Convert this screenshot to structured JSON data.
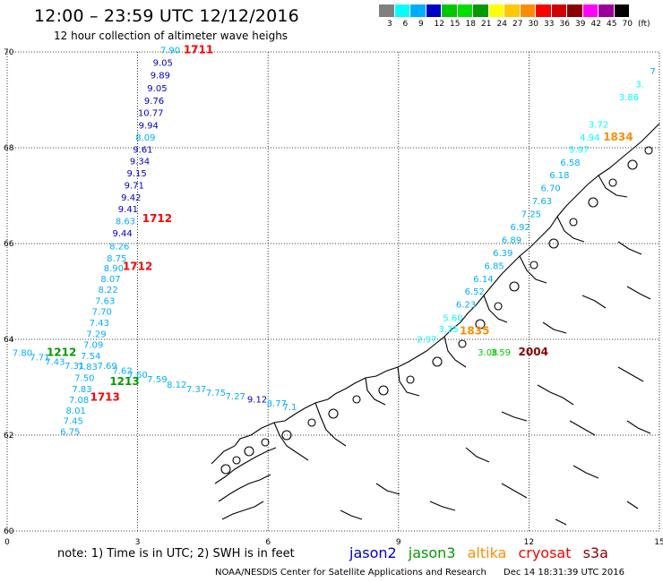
{
  "header": {
    "title": "12:00 – 23:59 UTC 12/12/2016",
    "subtitle": "12 hour collection of altimeter wave heighs"
  },
  "scale": {
    "colors": [
      "#808080",
      "#00ffff",
      "#00aeff",
      "#0000c8",
      "#00c800",
      "#00e000",
      "#009b00",
      "#ffff00",
      "#ffc800",
      "#ff8c00",
      "#ff0000",
      "#d20000",
      "#8c0000",
      "#ff00ff",
      "#9b009b",
      "#000000",
      "#000000"
    ],
    "labels": [
      "3",
      "6",
      "9",
      "12",
      "15",
      "18",
      "21",
      "24",
      "27",
      "30",
      "33",
      "36",
      "39",
      "42",
      "45",
      "70",
      "(ft)"
    ]
  },
  "axes": {
    "lon_ticks": [
      "0",
      "3",
      "6",
      "9",
      "12",
      "15"
    ],
    "lat_ticks": [
      "70",
      "68",
      "66",
      "64",
      "62",
      "60"
    ],
    "lon_values": [
      0,
      3,
      6,
      9,
      12,
      15
    ],
    "lat_values": [
      70,
      68,
      66,
      64,
      62,
      60
    ]
  },
  "satellites": [
    {
      "name": "jason2",
      "color": "#0000c8"
    },
    {
      "name": "jason3",
      "color": "#009b00"
    },
    {
      "name": "altika",
      "color": "#ff8c00"
    },
    {
      "name": "cryosat",
      "color": "#ff0000"
    },
    {
      "name": "s3a",
      "color": "#8c0000"
    }
  ],
  "note": "note:  1) Time is in UTC;  2) SWH is in feet",
  "credit": "NOAA/NESDIS Center for Satellite Applications and Research",
  "stamp": "Dec 14  18:31:39 UTC 2016",
  "observations": [
    {
      "text": "7.90",
      "lon": 3.75,
      "lat": 69.97,
      "c": "#00aeff"
    },
    {
      "text": "9.05",
      "lon": 3.58,
      "lat": 69.71,
      "c": "#0000c8"
    },
    {
      "text": "9.89",
      "lon": 3.52,
      "lat": 69.45,
      "c": "#0000c8"
    },
    {
      "text": "9.05",
      "lon": 3.45,
      "lat": 69.18,
      "c": "#0000c8"
    },
    {
      "text": "9.76",
      "lon": 3.38,
      "lat": 68.92,
      "c": "#0000c8"
    },
    {
      "text": "10.77",
      "lon": 3.3,
      "lat": 68.66,
      "c": "#0000c8"
    },
    {
      "text": "9.94",
      "lon": 3.25,
      "lat": 68.4,
      "c": "#0000c8"
    },
    {
      "text": "8.09",
      "lon": 3.18,
      "lat": 68.15,
      "c": "#00aeff"
    },
    {
      "text": "9.61",
      "lon": 3.12,
      "lat": 67.9,
      "c": "#0000c8"
    },
    {
      "text": "9.34",
      "lon": 3.05,
      "lat": 67.65,
      "c": "#0000c8"
    },
    {
      "text": "9.15",
      "lon": 2.98,
      "lat": 67.4,
      "c": "#0000c8"
    },
    {
      "text": "9.71",
      "lon": 2.92,
      "lat": 67.15,
      "c": "#0000c8"
    },
    {
      "text": "9.42",
      "lon": 2.85,
      "lat": 66.9,
      "c": "#0000c8"
    },
    {
      "text": "9.41",
      "lon": 2.78,
      "lat": 66.65,
      "c": "#0000c8"
    },
    {
      "text": "8.63",
      "lon": 2.72,
      "lat": 66.4,
      "c": "#00aeff"
    },
    {
      "text": "9.44",
      "lon": 2.65,
      "lat": 66.15,
      "c": "#0000c8"
    },
    {
      "text": "8.26",
      "lon": 2.58,
      "lat": 65.88,
      "c": "#00aeff"
    },
    {
      "text": "8.75",
      "lon": 2.52,
      "lat": 65.63,
      "c": "#00aeff"
    },
    {
      "text": "8.90",
      "lon": 2.45,
      "lat": 65.42,
      "c": "#00aeff"
    },
    {
      "text": "8.07",
      "lon": 2.38,
      "lat": 65.2,
      "c": "#00aeff"
    },
    {
      "text": "8.22",
      "lon": 2.32,
      "lat": 64.97,
      "c": "#00aeff"
    },
    {
      "text": "7.63",
      "lon": 2.25,
      "lat": 64.74,
      "c": "#00aeff"
    },
    {
      "text": "7.70",
      "lon": 2.18,
      "lat": 64.51,
      "c": "#00aeff"
    },
    {
      "text": "7.43",
      "lon": 2.12,
      "lat": 64.28,
      "c": "#00aeff"
    },
    {
      "text": "7.29",
      "lon": 2.05,
      "lat": 64.05,
      "c": "#00aeff"
    },
    {
      "text": "7.09",
      "lon": 1.98,
      "lat": 63.82,
      "c": "#00aeff"
    },
    {
      "text": "7.54",
      "lon": 1.92,
      "lat": 63.59,
      "c": "#00aeff"
    },
    {
      "text": "7.83",
      "lon": 1.85,
      "lat": 63.36,
      "c": "#00aeff"
    },
    {
      "text": "7.50",
      "lon": 1.78,
      "lat": 63.13,
      "c": "#00aeff"
    },
    {
      "text": "7.83",
      "lon": 1.72,
      "lat": 62.9,
      "c": "#00aeff"
    },
    {
      "text": "7.08",
      "lon": 1.65,
      "lat": 62.67,
      "c": "#00aeff"
    },
    {
      "text": "8.01",
      "lon": 1.58,
      "lat": 62.45,
      "c": "#00aeff"
    },
    {
      "text": "7.45",
      "lon": 1.52,
      "lat": 62.23,
      "c": "#00aeff"
    },
    {
      "text": "6.75",
      "lon": 1.45,
      "lat": 62.01,
      "c": "#00aeff"
    },
    {
      "text": "7.80",
      "lon": 0.35,
      "lat": 63.65,
      "c": "#00aeff"
    },
    {
      "text": "7.71",
      "lon": 0.75,
      "lat": 63.56,
      "c": "#00aeff"
    },
    {
      "text": "7.43",
      "lon": 1.1,
      "lat": 63.47,
      "c": "#00aeff"
    },
    {
      "text": "7.31",
      "lon": 1.55,
      "lat": 63.38,
      "c": "#00aeff"
    },
    {
      "text": "7.69",
      "lon": 2.3,
      "lat": 63.38,
      "c": "#00aeff"
    },
    {
      "text": "7.62",
      "lon": 2.65,
      "lat": 63.28,
      "c": "#00aeff"
    },
    {
      "text": "7.60",
      "lon": 3.0,
      "lat": 63.2,
      "c": "#00aeff"
    },
    {
      "text": "7.59",
      "lon": 3.45,
      "lat": 63.1,
      "c": "#00aeff"
    },
    {
      "text": "8.12",
      "lon": 3.9,
      "lat": 62.99,
      "c": "#00aeff"
    },
    {
      "text": "7.37",
      "lon": 4.35,
      "lat": 62.9,
      "c": "#00aeff"
    },
    {
      "text": "7.75",
      "lon": 4.8,
      "lat": 62.82,
      "c": "#00aeff"
    },
    {
      "text": "7.27",
      "lon": 5.25,
      "lat": 62.75,
      "c": "#00aeff"
    },
    {
      "text": "9.12",
      "lon": 5.75,
      "lat": 62.68,
      "c": "#0000c8"
    },
    {
      "text": "8.77",
      "lon": 6.2,
      "lat": 62.6,
      "c": "#00aeff"
    },
    {
      "text": "7.1",
      "lon": 6.5,
      "lat": 62.52,
      "c": "#00aeff"
    },
    {
      "text": "3.35",
      "lon": 10.15,
      "lat": 64.15,
      "c": "#00ffff"
    },
    {
      "text": "5.60",
      "lon": 10.25,
      "lat": 64.38,
      "c": "#00ffff"
    },
    {
      "text": "6.23",
      "lon": 10.55,
      "lat": 64.66,
      "c": "#00aeff"
    },
    {
      "text": "6.52",
      "lon": 10.75,
      "lat": 64.93,
      "c": "#00aeff"
    },
    {
      "text": "6.14",
      "lon": 10.95,
      "lat": 65.2,
      "c": "#00aeff"
    },
    {
      "text": "6.85",
      "lon": 11.2,
      "lat": 65.47,
      "c": "#00aeff"
    },
    {
      "text": "6.39",
      "lon": 11.4,
      "lat": 65.74,
      "c": "#00aeff"
    },
    {
      "text": "6.89",
      "lon": 11.6,
      "lat": 66.01,
      "c": "#00aeff"
    },
    {
      "text": "6.92",
      "lon": 11.8,
      "lat": 66.28,
      "c": "#00aeff"
    },
    {
      "text": "7.25",
      "lon": 12.05,
      "lat": 66.55,
      "c": "#00aeff"
    },
    {
      "text": "7.63",
      "lon": 12.3,
      "lat": 66.82,
      "c": "#00aeff"
    },
    {
      "text": "6.70",
      "lon": 12.5,
      "lat": 67.09,
      "c": "#00aeff"
    },
    {
      "text": "6.18",
      "lon": 12.7,
      "lat": 67.36,
      "c": "#00aeff"
    },
    {
      "text": "6.58",
      "lon": 12.95,
      "lat": 67.63,
      "c": "#00aeff"
    },
    {
      "text": "5.97",
      "lon": 13.15,
      "lat": 67.9,
      "c": "#00ffff"
    },
    {
      "text": "4.94",
      "lon": 13.4,
      "lat": 68.15,
      "c": "#00ffff"
    },
    {
      "text": "3.72",
      "lon": 13.6,
      "lat": 68.42,
      "c": "#00ffff"
    },
    {
      "text": "3.86",
      "lon": 14.3,
      "lat": 68.99,
      "c": "#00ffff"
    },
    {
      "text": "3.",
      "lon": 14.55,
      "lat": 69.26,
      "c": "#00ffff"
    },
    {
      "text": "7",
      "lon": 14.85,
      "lat": 69.53,
      "c": "#00aeff"
    },
    {
      "text": "2.97",
      "lon": 9.65,
      "lat": 63.93,
      "c": "#00ffff"
    },
    {
      "text": "3.08",
      "lon": 11.05,
      "lat": 63.66,
      "c": "#00c800"
    },
    {
      "text": "3.59",
      "lon": 11.35,
      "lat": 63.66,
      "c": "#00c800"
    }
  ],
  "time_labels": [
    {
      "text": "1711",
      "lon": 4.4,
      "lat": 69.97,
      "c": "#ff0000"
    },
    {
      "text": "1712",
      "lon": 3.45,
      "lat": 66.45,
      "c": "#ff0000"
    },
    {
      "text": "1712",
      "lon": 3.0,
      "lat": 65.45,
      "c": "#ff0000"
    },
    {
      "text": "1212",
      "lon": 1.25,
      "lat": 63.65,
      "c": "#009b00"
    },
    {
      "text": "1213",
      "lon": 2.7,
      "lat": 63.05,
      "c": "#009b00"
    },
    {
      "text": "1713",
      "lon": 2.25,
      "lat": 62.72,
      "c": "#ff0000"
    },
    {
      "text": "1835",
      "lon": 10.75,
      "lat": 64.1,
      "c": "#ff8c00"
    },
    {
      "text": "1834",
      "lon": 14.05,
      "lat": 68.15,
      "c": "#ff8c00"
    },
    {
      "text": "2004",
      "lon": 12.1,
      "lat": 63.66,
      "c": "#8c0000"
    }
  ]
}
